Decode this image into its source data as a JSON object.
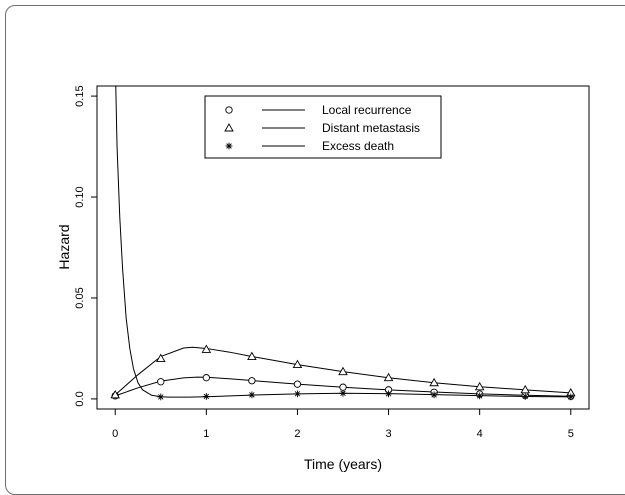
{
  "chart_data": {
    "type": "line",
    "title": "",
    "xlabel": "Time (years)",
    "ylabel": "Hazard",
    "xlim": [
      -0.2,
      5.2
    ],
    "ylim": [
      -0.005,
      0.155
    ],
    "xticks": [
      "0",
      "1",
      "2",
      "3",
      "4",
      "5"
    ],
    "xtick_values": [
      0,
      1,
      2,
      3,
      4,
      5
    ],
    "yticks": [
      "0.0",
      "0.05",
      "0.10",
      "0.15"
    ],
    "ytick_values": [
      0,
      0.05,
      0.1,
      0.15
    ],
    "legend_position": "top-center",
    "grid": false,
    "series": [
      {
        "name": "Local recurrence",
        "marker": "circle",
        "points_x": [
          0,
          0.5,
          1,
          1.5,
          2,
          2.5,
          3,
          3.5,
          4,
          4.5,
          5
        ],
        "points_y": [
          0.0015,
          0.0085,
          0.0105,
          0.009,
          0.0073,
          0.0058,
          0.0045,
          0.0033,
          0.0024,
          0.0018,
          0.0013
        ],
        "curve_x": [
          0,
          0.25,
          0.5,
          0.75,
          0.9,
          1.0,
          1.25,
          1.5,
          1.75,
          2.0,
          2.5,
          3.0,
          3.5,
          4.0,
          4.5,
          5.0
        ],
        "curve_y": [
          0.0015,
          0.0055,
          0.0088,
          0.0104,
          0.0108,
          0.0107,
          0.01,
          0.0091,
          0.0082,
          0.0073,
          0.0058,
          0.0045,
          0.0034,
          0.0025,
          0.0018,
          0.0013
        ]
      },
      {
        "name": "Distant metastasis",
        "marker": "triangle",
        "points_x": [
          0,
          0.5,
          1,
          1.5,
          2,
          2.5,
          3,
          3.5,
          4,
          4.5,
          5
        ],
        "points_y": [
          0.002,
          0.02,
          0.0245,
          0.021,
          0.017,
          0.0135,
          0.0105,
          0.008,
          0.006,
          0.0045,
          0.003
        ],
        "curve_x": [
          0,
          0.25,
          0.5,
          0.75,
          0.85,
          1.0,
          1.25,
          1.5,
          1.75,
          2.0,
          2.5,
          3.0,
          3.5,
          4.0,
          4.5,
          5.0
        ],
        "curve_y": [
          0.002,
          0.012,
          0.021,
          0.0252,
          0.0256,
          0.025,
          0.0232,
          0.021,
          0.019,
          0.017,
          0.0135,
          0.0105,
          0.008,
          0.006,
          0.0045,
          0.003
        ]
      },
      {
        "name": "Excess death",
        "marker": "asterisk",
        "points_x": [
          0.5,
          1,
          1.5,
          2,
          2.5,
          3,
          3.5,
          4,
          4.5,
          5
        ],
        "points_y": [
          0.001,
          0.0012,
          0.002,
          0.0025,
          0.0028,
          0.0025,
          0.002,
          0.0015,
          0.0012,
          0.001
        ],
        "curve_x": [
          0.0,
          0.02,
          0.05,
          0.08,
          0.12,
          0.16,
          0.2,
          0.25,
          0.3,
          0.4,
          0.5,
          0.6,
          0.8,
          1.0,
          1.5,
          2.0,
          2.5,
          3.0,
          3.5,
          4.0,
          4.5,
          5.0
        ],
        "curve_y": [
          0.168,
          0.125,
          0.09,
          0.065,
          0.04,
          0.025,
          0.015,
          0.008,
          0.0045,
          0.0018,
          0.0011,
          0.0009,
          0.0009,
          0.0011,
          0.0019,
          0.0025,
          0.0028,
          0.0026,
          0.0021,
          0.0016,
          0.0012,
          0.001
        ]
      }
    ]
  }
}
